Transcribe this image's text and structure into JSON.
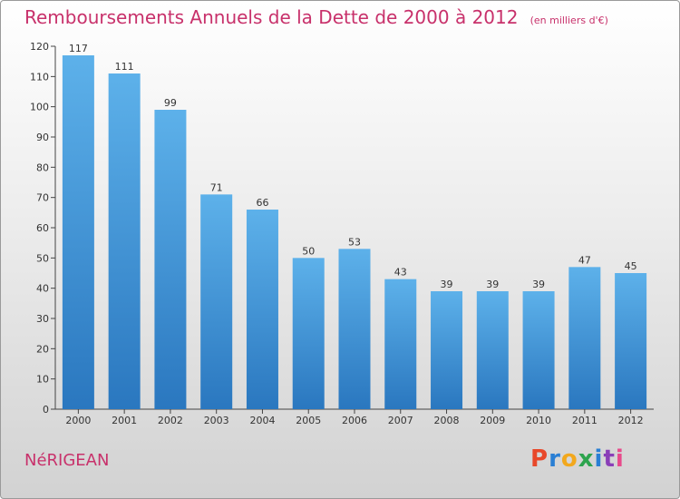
{
  "title": "Remboursements Annuels de la Dette de 2000 à 2012",
  "unit_note": "(en milliers d'€)",
  "commune": "NéRIGEAN",
  "logo": {
    "text": "Proxiti",
    "letter_colors": [
      "#e8482a",
      "#2a7fd4",
      "#f2a81d",
      "#2da44e",
      "#2a7fd4",
      "#8a3fb8",
      "#e84a8b"
    ]
  },
  "colors": {
    "bar_top": "#5db1ea",
    "bar_bottom": "#2a77bf",
    "accent": "#c8316b"
  },
  "chart_data": {
    "type": "bar",
    "categories": [
      "2000",
      "2001",
      "2002",
      "2003",
      "2004",
      "2005",
      "2006",
      "2007",
      "2008",
      "2009",
      "2010",
      "2011",
      "2012"
    ],
    "values": [
      117,
      111,
      99,
      71,
      66,
      50,
      53,
      43,
      39,
      39,
      39,
      47,
      45
    ],
    "title": "Remboursements Annuels de la Dette de 2000 à 2012",
    "xlabel": "",
    "ylabel": "",
    "ylim": [
      0,
      120
    ],
    "yticks": [
      0,
      10,
      20,
      30,
      40,
      50,
      60,
      70,
      80,
      90,
      100,
      110,
      120
    ],
    "grid": false,
    "legend": "none"
  }
}
